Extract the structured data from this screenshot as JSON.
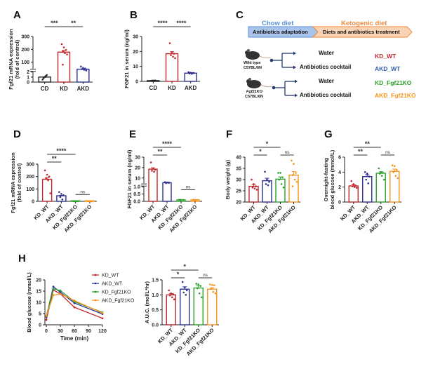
{
  "panels": {
    "A": {
      "letter": "A"
    },
    "B": {
      "letter": "B"
    },
    "C": {
      "letter": "C"
    },
    "D": {
      "letter": "D"
    },
    "E": {
      "letter": "E"
    },
    "F": {
      "letter": "F"
    },
    "G": {
      "letter": "G"
    },
    "H": {
      "letter": "H"
    }
  },
  "diagram": {
    "phase1_title": "Chow diet",
    "phase2_title": "Ketogenic diet",
    "phase1_label": "Antibiotics adaptation",
    "phase2_label": "Diets and antibiotics treatment",
    "mouse1_label_line1": "Wild type",
    "mouse1_label_line2": "C57BL/6N",
    "mouse2_label_line1": "Fgf21KO",
    "mouse2_label_line2": "C57BL/6N",
    "treatments": [
      "Water",
      "Antibiotics cocktail",
      "Water",
      "Antibiotics cocktail"
    ],
    "groups": [
      "KD_WT",
      "AKD_WT",
      "KD_Fgf21KO",
      "AKD_Fgf21KO"
    ],
    "colors": {
      "phase1": "#5b8fd6",
      "phase2": "#f08a3c",
      "phase1_fill": "#a9c4ea",
      "phase2_fill": "#f9d4b4",
      "arrow": "#24386e"
    }
  },
  "colors": {
    "CD": "#222222",
    "KD_WT": "#c0272d",
    "AKD_WT": "#2e3192",
    "KD_Fgf21KO": "#2ca02c",
    "AKD_Fgf21KO": "#f7941d"
  },
  "chart_data": [
    {
      "id": "A",
      "type": "bar",
      "ylabel_line1": "Fgf21 mRNA expression",
      "ylabel_line2": "(fold of control)",
      "categories": [
        "CD",
        "KD",
        "AKD"
      ],
      "values": [
        1.0,
        178,
        45
      ],
      "points": [
        [
          0.5,
          1.0,
          1.4,
          0.8,
          1.2
        ],
        [
          240,
          215,
          195,
          185,
          170,
          160,
          80
        ],
        [
          65,
          55,
          50,
          45,
          40,
          35
        ]
      ],
      "broken_axis": {
        "lower_ticks": [
          0,
          1,
          2
        ],
        "upper_ticks": [
          100,
          200,
          300
        ]
      },
      "ylim": [
        0,
        300
      ],
      "significance": [
        {
          "from": 0,
          "to": 1,
          "label": "***"
        },
        {
          "from": 1,
          "to": 2,
          "label": "**"
        }
      ]
    },
    {
      "id": "B",
      "type": "bar",
      "ylabel": "FGF21 in serum (ng/ml)",
      "categories": [
        "CD",
        "KD",
        "AKD"
      ],
      "values": [
        0.5,
        18.5,
        5.5
      ],
      "points": [
        [
          0.4,
          0.5,
          0.6,
          0.5,
          0.5
        ],
        [
          25.5,
          19.5,
          18.5,
          17.5,
          16.5,
          15.5
        ],
        [
          6.2,
          5.8,
          5.5,
          5.3,
          5.1,
          5.6
        ]
      ],
      "yticks": [
        0,
        10,
        20,
        30
      ],
      "ylim": [
        0,
        30
      ],
      "significance": [
        {
          "from": 0,
          "to": 1,
          "label": "****"
        },
        {
          "from": 1,
          "to": 2,
          "label": "****"
        }
      ]
    },
    {
      "id": "D",
      "type": "bar",
      "ylabel_line1": "Fgf21 mRNA expression",
      "ylabel_line2": "(fold of control)",
      "categories": [
        "KD_WT",
        "AKD_WT",
        "KD_Fgf21KO",
        "AKD_Fgf21KO"
      ],
      "values": [
        178,
        45,
        1,
        1
      ],
      "points": [
        [
          250,
          215,
          200,
          185,
          170,
          65
        ],
        [
          75,
          60,
          50,
          35,
          15
        ],
        [
          1,
          1,
          1,
          1,
          1
        ],
        [
          1,
          1,
          1,
          1,
          1
        ]
      ],
      "yticks": [
        0,
        100,
        200,
        300
      ],
      "ylim": [
        0,
        300
      ],
      "significance": [
        {
          "from": 0,
          "to": 1,
          "label": "**"
        },
        {
          "from": 0,
          "to": 2,
          "label": "****"
        },
        {
          "from": 2,
          "to": 3,
          "label": "ns"
        }
      ]
    },
    {
      "id": "E",
      "type": "bar",
      "ylabel": "FGF21 in serum (ng/ml)",
      "categories": [
        "KD_WT",
        "AKD_WT",
        "KD_Fgf21KO",
        "AKD_Fgf21KO"
      ],
      "values": [
        18.5,
        5.5,
        0.1,
        0.1
      ],
      "points": [
        [
          25,
          19,
          18,
          17,
          16
        ],
        [
          6,
          5.7,
          5.5,
          5.2,
          5.6
        ],
        [
          0.1,
          0.1,
          0.1,
          0.1
        ],
        [
          0.1,
          0.1,
          0.1,
          0.1
        ]
      ],
      "broken_axis": {
        "lower_ticks": [
          0.0,
          0.5,
          1.0
        ],
        "upper_ticks": [
          10,
          20,
          30
        ]
      },
      "ylim": [
        0,
        30
      ],
      "significance": [
        {
          "from": 0,
          "to": 1,
          "label": "**"
        },
        {
          "from": 0,
          "to": 2,
          "label": "****"
        },
        {
          "from": 2,
          "to": 3,
          "label": "ns"
        }
      ]
    },
    {
      "id": "F",
      "type": "bar",
      "ylabel": "Body weight (g)",
      "categories": [
        "KD_WT",
        "AKD_WT",
        "KD_Fgf21KO",
        "AKD_Fgf21KO"
      ],
      "values": [
        27,
        29.5,
        30.2,
        32
      ],
      "errors": [
        0.8,
        1.1,
        1.0,
        1.6
      ],
      "points": [
        [
          30,
          28,
          27,
          26.5,
          26,
          25.5
        ],
        [
          33.5,
          30,
          29,
          28,
          27.5
        ],
        [
          33,
          33,
          31,
          30,
          28,
          26.5
        ],
        [
          38.5,
          37,
          33,
          32,
          30,
          29,
          27
        ]
      ],
      "yticks": [
        20,
        25,
        30,
        35,
        40
      ],
      "ylim": [
        20,
        40
      ],
      "significance": [
        {
          "from": 0,
          "to": 1,
          "label": "*"
        },
        {
          "from": 0,
          "to": 2,
          "label": "*"
        },
        {
          "from": 2,
          "to": 3,
          "label": "ns"
        }
      ]
    },
    {
      "id": "G",
      "type": "bar",
      "ylabel_line1": "Overnight-fasting",
      "ylabel_line2": "blood glucose (mmol/L)",
      "categories": [
        "KD_WT",
        "AKD_WT",
        "KD_Fgf21KO",
        "AKD_Fgf21KO"
      ],
      "values": [
        2.15,
        3.4,
        3.85,
        4.1
      ],
      "errors": [
        0.15,
        0.25,
        0.2,
        0.3
      ],
      "points": [
        [
          2.8,
          2.4,
          2.2,
          2.1,
          2.0,
          1.9
        ],
        [
          4.0,
          3.8,
          3.4,
          3.0,
          2.5
        ],
        [
          4.5,
          4.0,
          3.9,
          3.8,
          3.5,
          3.0
        ],
        [
          4.9,
          4.8,
          4.3,
          4.0,
          3.5,
          3.2
        ]
      ],
      "yticks": [
        0,
        2,
        4,
        6
      ],
      "ylim": [
        0,
        6
      ],
      "significance": [
        {
          "from": 0,
          "to": 1,
          "label": "**"
        },
        {
          "from": 0,
          "to": 2,
          "label": "**"
        },
        {
          "from": 2,
          "to": 3,
          "label": "ns"
        }
      ]
    },
    {
      "id": "H1",
      "type": "line",
      "ylabel": "Blood glucose (mmol/L)",
      "xlabel": "Time (min)",
      "x": [
        0,
        15,
        30,
        60,
        120
      ],
      "xticks": [
        0,
        30,
        60,
        90,
        120
      ],
      "yticks": [
        0,
        5,
        10,
        15,
        20
      ],
      "xlim": [
        0,
        120
      ],
      "ylim": [
        0,
        20
      ],
      "legend_position": "top-right",
      "series": [
        {
          "name": "KD_WT",
          "values": [
            2.2,
            15.5,
            13.8,
            7.8,
            2.9
          ]
        },
        {
          "name": "AKD_WT",
          "values": [
            3.5,
            17.0,
            14.5,
            9.7,
            4.8
          ]
        },
        {
          "name": "KD_Fgf21KO",
          "values": [
            3.8,
            16.0,
            15.3,
            10.3,
            5.5
          ]
        },
        {
          "name": "AKD_Fgf21KO",
          "values": [
            4.0,
            13.2,
            13.8,
            10.8,
            5.2
          ]
        }
      ]
    },
    {
      "id": "H2",
      "type": "bar",
      "ylabel": "A.U.C. (mol/L*hr)",
      "categories": [
        "KD_WT",
        "AKD_WT",
        "KD_Fgf21KO",
        "AKD_Fgf21KO"
      ],
      "values": [
        1.0,
        1.19,
        1.23,
        1.19
      ],
      "errors": [
        0.04,
        0.08,
        0.07,
        0.05
      ],
      "points": [
        [
          1.15,
          1.05,
          1.02,
          0.98,
          0.92,
          0.85
        ],
        [
          1.43,
          1.25,
          1.15,
          1.08,
          1.0
        ],
        [
          1.37,
          1.35,
          1.3,
          1.22,
          1.05,
          0.92
        ],
        [
          1.35,
          1.33,
          1.32,
          1.2,
          1.1,
          1.05
        ]
      ],
      "yticks": [
        0.0,
        0.5,
        1.0,
        1.5
      ],
      "ylim": [
        0,
        1.5
      ],
      "significance": [
        {
          "from": 0,
          "to": 1,
          "label": "*"
        },
        {
          "from": 0,
          "to": 2,
          "label": "*"
        },
        {
          "from": 2,
          "to": 3,
          "label": "ns"
        }
      ]
    }
  ]
}
